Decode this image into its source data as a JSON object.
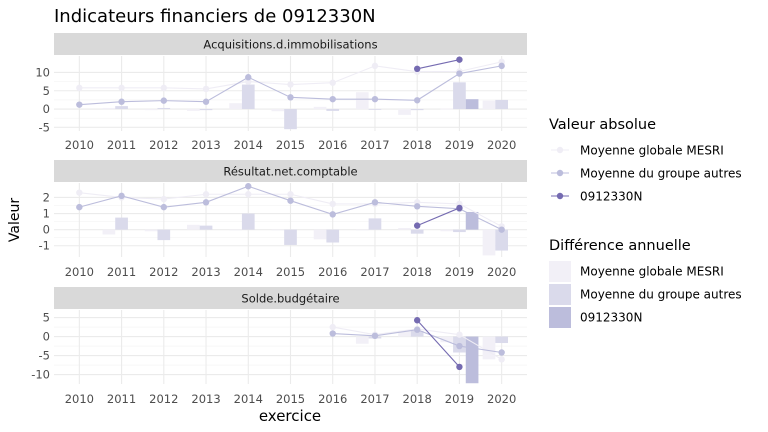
{
  "chart_data": {
    "type": "line",
    "title": "Indicateurs financiers de 0912330N",
    "xlabel": "exercice",
    "ylabel": "Valeur",
    "categories": [
      "2010",
      "2011",
      "2012",
      "2013",
      "2014",
      "2015",
      "2016",
      "2017",
      "2018",
      "2019",
      "2020"
    ],
    "legend_line": {
      "title": "Valeur absolue",
      "entries": [
        "Moyenne globale MESRI",
        "Moyenne du groupe autres",
        "0912330N"
      ]
    },
    "legend_bar": {
      "title": "Différence annuelle",
      "entries": [
        "Moyenne globale MESRI",
        "Moyenne du groupe autres",
        "0912330N"
      ]
    },
    "colors": {
      "line": [
        "#efedf5",
        "#bcbddc",
        "#756bb1"
      ],
      "bar": [
        "#f2f0f7",
        "#dadaeb",
        "#bcbddc"
      ],
      "strip": "#d9d9d9",
      "grid": "#ebebeb",
      "text": "#4d4d4d"
    },
    "panels": [
      {
        "strip": "Acquisitions.d.immobilisations",
        "ylim": [
          -6,
          14.5
        ],
        "ticks": [
          -5,
          0,
          5,
          10
        ],
        "tick_labels": [
          "-5",
          "0",
          "5",
          "10"
        ],
        "lines": [
          [
            5.8,
            5.8,
            5.8,
            5.5,
            7.5,
            6.7,
            7.2,
            11.8,
            10.2,
            10.3,
            12.9
          ],
          [
            1.2,
            2.0,
            2.3,
            2.0,
            8.7,
            3.2,
            2.7,
            2.7,
            2.4,
            9.7,
            11.8
          ],
          [
            null,
            null,
            null,
            null,
            null,
            null,
            null,
            null,
            11.0,
            13.5,
            null
          ]
        ],
        "bars": [
          [
            null,
            0.3,
            -0.3,
            -0.5,
            1.6,
            -0.6,
            0.6,
            4.6,
            -1.6,
            0.1,
            2.3
          ],
          [
            null,
            0.8,
            0.3,
            -0.3,
            6.7,
            -5.5,
            -0.5,
            0.0,
            -0.3,
            7.3,
            2.5
          ],
          [
            null,
            null,
            null,
            null,
            null,
            null,
            null,
            null,
            null,
            2.7,
            null
          ]
        ]
      },
      {
        "strip": "Résultat.net.comptable",
        "ylim": [
          -1.7,
          2.9
        ],
        "ticks": [
          -1,
          0,
          1,
          2
        ],
        "tick_labels": [
          "-1",
          "0",
          "1",
          "2"
        ],
        "lines": [
          [
            2.3,
            2.0,
            1.9,
            2.2,
            2.2,
            2.2,
            1.6,
            1.6,
            1.7,
            1.6,
            0.2
          ],
          [
            1.4,
            2.1,
            1.4,
            1.7,
            2.7,
            1.8,
            0.95,
            1.7,
            1.45,
            1.3,
            0.0
          ],
          [
            null,
            null,
            null,
            null,
            null,
            null,
            null,
            null,
            0.25,
            1.35,
            null
          ]
        ],
        "bars": [
          [
            null,
            -0.3,
            -0.1,
            0.3,
            0.0,
            0.0,
            -0.6,
            0.0,
            0.1,
            -0.1,
            -1.6
          ],
          [
            null,
            0.75,
            -0.65,
            0.25,
            1.0,
            -0.95,
            -0.8,
            0.7,
            -0.25,
            -0.15,
            -1.3
          ],
          [
            null,
            null,
            null,
            null,
            null,
            null,
            null,
            null,
            null,
            1.1,
            null
          ]
        ]
      },
      {
        "strip": "Solde.budgétaire",
        "ylim": [
          -12.5,
          7
        ],
        "ticks": [
          -10,
          -5,
          0,
          5
        ],
        "tick_labels": [
          "-10",
          "-5",
          "0",
          "5"
        ],
        "lines": [
          [
            null,
            null,
            null,
            null,
            null,
            null,
            2.5,
            0.5,
            2.0,
            0.5,
            -6.0
          ],
          [
            null,
            null,
            null,
            null,
            null,
            null,
            0.8,
            0.2,
            1.8,
            -2.5,
            -4.2
          ],
          [
            null,
            null,
            null,
            null,
            null,
            null,
            null,
            null,
            4.3,
            -8.0,
            null
          ]
        ],
        "bars": [
          [
            null,
            null,
            null,
            null,
            null,
            null,
            null,
            -1.9,
            1.5,
            -1.5,
            -6.0
          ],
          [
            null,
            null,
            null,
            null,
            null,
            null,
            null,
            -0.5,
            1.5,
            -4.2,
            -1.7
          ],
          [
            null,
            null,
            null,
            null,
            null,
            null,
            null,
            null,
            null,
            -12.3,
            null
          ]
        ]
      }
    ]
  }
}
